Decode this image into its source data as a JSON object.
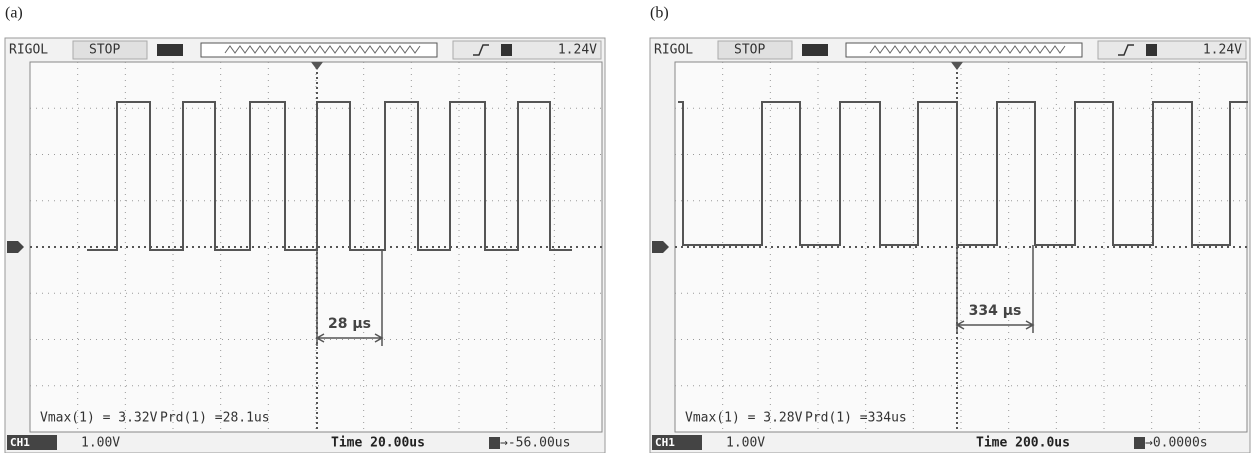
{
  "panels": [
    {
      "label": "(a)",
      "brand": "RIGOL",
      "status": "STOP",
      "trigger_level": "1.24V",
      "measurements": [
        "Vmax(1) = 3.32V",
        "Prd(1) =28.1us"
      ],
      "channel": "CH1",
      "volts_per_div": "1.00V",
      "timebase": "Time 20.00us",
      "trigger_offset": "→-56.00us",
      "annotation": "28 μs"
    },
    {
      "label": "(b)",
      "brand": "RIGOL",
      "status": "STOP",
      "trigger_level": "1.24V",
      "measurements": [
        "Vmax(1) = 3.28V",
        "Prd(1) =334us"
      ],
      "channel": "CH1",
      "volts_per_div": "1.00V",
      "timebase": "Time 200.0us",
      "trigger_offset": "→0.0000s",
      "annotation": "334 μs"
    }
  ]
}
